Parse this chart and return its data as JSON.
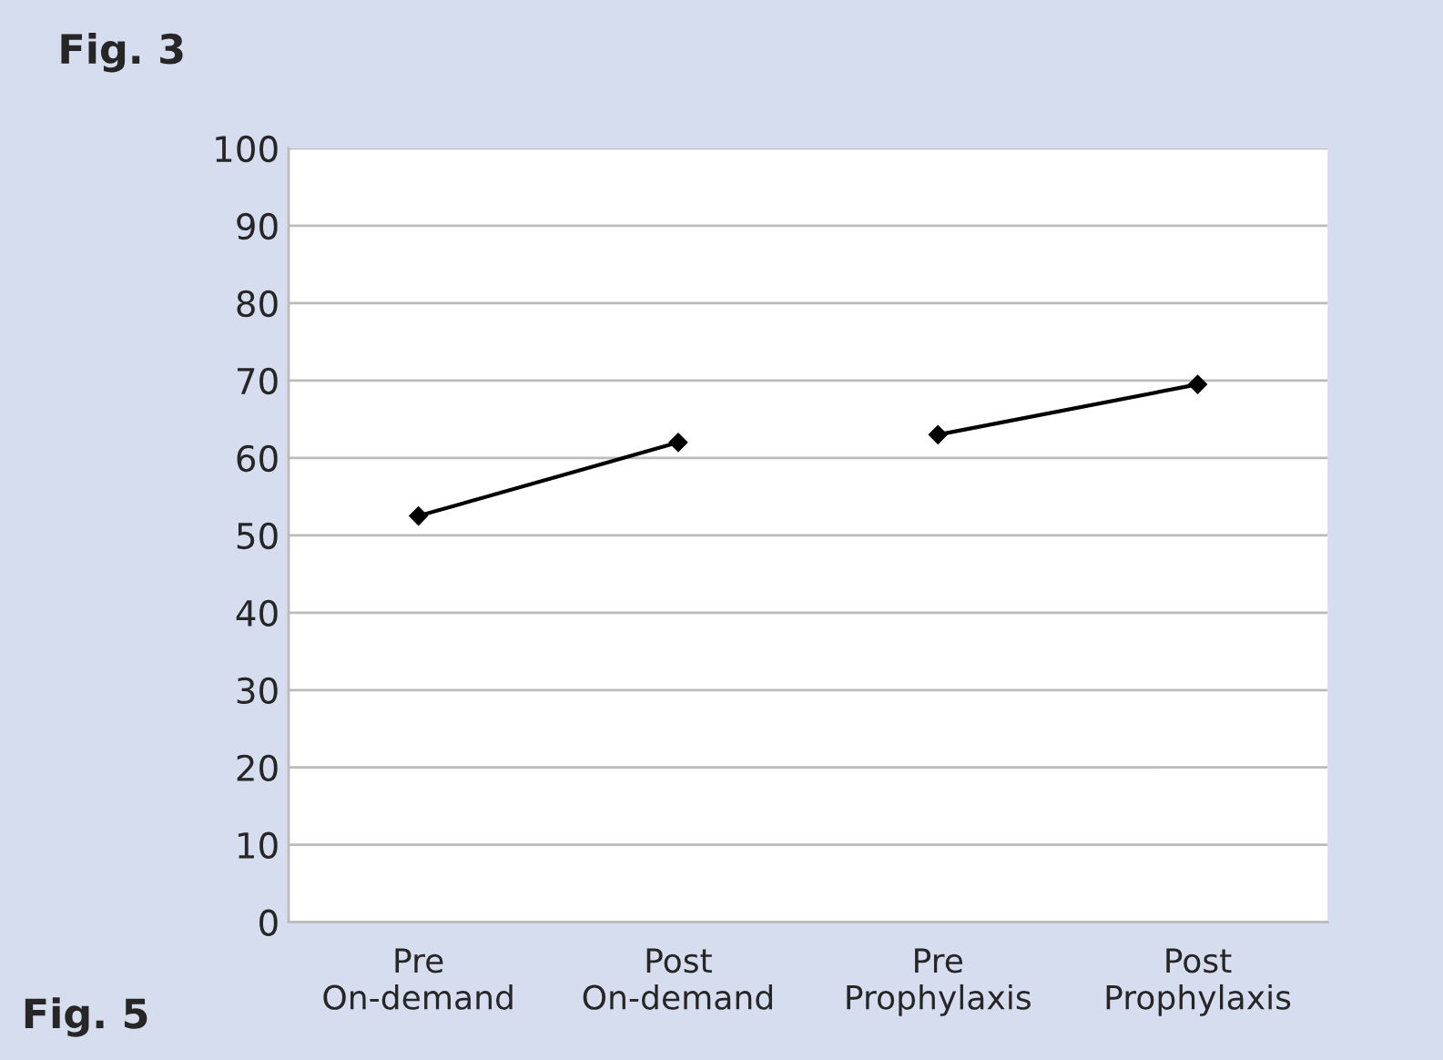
{
  "chart_data": {
    "type": "line",
    "title": "Fig. 3",
    "annotations": [
      "Fig. 5"
    ],
    "categories": [
      "Pre\nOn-demand",
      "Post\nOn-demand",
      "Pre\nProphylaxis",
      "Post\nProphylaxis"
    ],
    "series": [
      {
        "color": "#000000",
        "values": [
          52.5,
          62,
          null,
          null
        ]
      },
      {
        "color": "#000000",
        "values": [
          null,
          null,
          63,
          69.5
        ]
      }
    ],
    "ylim": [
      0,
      100
    ],
    "yticks": [
      0,
      10,
      20,
      30,
      40,
      50,
      60,
      70,
      80,
      90,
      100
    ],
    "grid": "y",
    "marker": "diamond",
    "line_style": "solid",
    "legend": false
  }
}
